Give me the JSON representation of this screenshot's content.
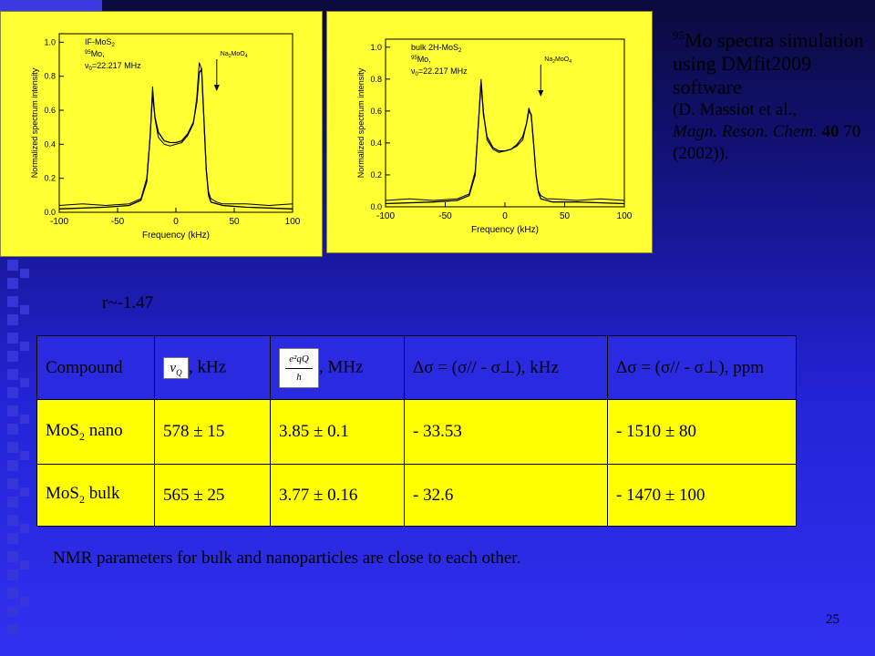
{
  "left_chart": {
    "legend_lines": [
      "IF-MoS",
      "Mo,",
      "=22.217 MHz"
    ],
    "legend_sub": "2",
    "legend_sup": "95",
    "legend_nu": "ν",
    "legend_nu_sub": "0",
    "arrow_label": "Na",
    "arrow_label_rest": "MoO",
    "arrow_sub1": "2",
    "arrow_sub2": "4"
  },
  "right_chart": {
    "legend_lines": [
      "bulk 2H-MoS",
      "Mo,",
      "=22.217 MHz"
    ],
    "legend_sub": "2",
    "legend_sup": "95",
    "legend_nu": "ν",
    "legend_nu_sub": "0",
    "arrow_label": "Na",
    "arrow_label_rest": "MoO",
    "arrow_sub1": "2",
    "arrow_sub2": "4"
  },
  "chart_data": [
    {
      "type": "line",
      "xlabel": "Frequency (kHz)",
      "ylabel": "Normalized spectrum intensity",
      "xlim": [
        -100,
        100
      ],
      "ylim": [
        0.0,
        1.05
      ],
      "xticks": [
        -100,
        -50,
        0,
        50,
        100
      ],
      "yticks": [
        "0.0",
        "0.2",
        "0.4",
        "0.6",
        "0.8",
        "1.0"
      ],
      "series": [
        {
          "kind": "experimental",
          "x": [
            -100,
            -80,
            -60,
            -40,
            -30,
            -25,
            -22,
            -20,
            -18,
            -15,
            -10,
            -5,
            0,
            5,
            10,
            15,
            18,
            20,
            22,
            24,
            26,
            28,
            30,
            35,
            40,
            60,
            80,
            100
          ],
          "y": [
            0.04,
            0.05,
            0.04,
            0.05,
            0.08,
            0.2,
            0.45,
            0.74,
            0.55,
            0.44,
            0.4,
            0.39,
            0.4,
            0.41,
            0.45,
            0.52,
            0.68,
            0.88,
            0.84,
            0.55,
            0.25,
            0.12,
            0.08,
            0.06,
            0.05,
            0.05,
            0.04,
            0.05
          ]
        },
        {
          "kind": "simulation",
          "x": [
            -100,
            -60,
            -40,
            -30,
            -25,
            -22,
            -20,
            -18,
            -15,
            -10,
            -5,
            0,
            5,
            10,
            15,
            18,
            20,
            22,
            24,
            26,
            28,
            30,
            40,
            60,
            100
          ],
          "y": [
            0.02,
            0.03,
            0.04,
            0.07,
            0.18,
            0.45,
            0.7,
            0.56,
            0.47,
            0.42,
            0.41,
            0.41,
            0.42,
            0.46,
            0.53,
            0.65,
            0.82,
            0.84,
            0.55,
            0.25,
            0.1,
            0.06,
            0.04,
            0.03,
            0.02
          ]
        }
      ],
      "annotation_x": 35
    },
    {
      "type": "line",
      "xlabel": "Frequency (kHz)",
      "ylabel": "Normalized spectrum intensity",
      "xlim": [
        -100,
        100
      ],
      "ylim": [
        0.0,
        1.05
      ],
      "xticks": [
        -100,
        -50,
        0,
        50,
        100
      ],
      "yticks": [
        "0.0",
        "0.2",
        "0.4",
        "0.6",
        "0.8",
        "1.0"
      ],
      "series": [
        {
          "kind": "experimental",
          "x": [
            -100,
            -80,
            -60,
            -40,
            -30,
            -25,
            -22,
            -20,
            -18,
            -15,
            -10,
            -5,
            0,
            5,
            10,
            15,
            18,
            20,
            22,
            24,
            26,
            28,
            30,
            35,
            40,
            60,
            80,
            100
          ],
          "y": [
            0.04,
            0.05,
            0.04,
            0.05,
            0.08,
            0.22,
            0.55,
            0.8,
            0.6,
            0.42,
            0.36,
            0.34,
            0.35,
            0.36,
            0.38,
            0.42,
            0.52,
            0.62,
            0.57,
            0.4,
            0.2,
            0.1,
            0.07,
            0.05,
            0.05,
            0.04,
            0.05,
            0.04
          ]
        },
        {
          "kind": "simulation",
          "x": [
            -100,
            -60,
            -40,
            -30,
            -25,
            -22,
            -20,
            -18,
            -15,
            -10,
            -5,
            0,
            5,
            10,
            15,
            18,
            20,
            22,
            24,
            26,
            28,
            30,
            40,
            60,
            100
          ],
          "y": [
            0.02,
            0.03,
            0.04,
            0.07,
            0.2,
            0.55,
            0.78,
            0.58,
            0.44,
            0.37,
            0.35,
            0.35,
            0.36,
            0.39,
            0.44,
            0.52,
            0.6,
            0.58,
            0.4,
            0.2,
            0.09,
            0.05,
            0.03,
            0.03,
            0.02
          ]
        }
      ],
      "annotation_x": 30
    }
  ],
  "note": {
    "sup": "95",
    "line1": "Mo spectra simulation using DMfit2009 software",
    "ref_a": "(D. Massiot et al.,",
    "ref_b": "Magn. Reson. Chem.",
    "ref_c": "40",
    "ref_d": "70 (2002))."
  },
  "r_label": "r~-1.47",
  "table": {
    "header": {
      "compound": "Compound",
      "nu_symbol": "ν",
      "nu_sub": "Q",
      "nu_unit": ", kHz",
      "cq_num": "e²qQ",
      "cq_den": "h",
      "cq_unit": ", MHz",
      "ds_khz": "Δσ = (σ// - σ⊥), kHz",
      "ds_ppm": "Δσ = (σ// - σ⊥), ppm"
    },
    "rows": [
      {
        "compound": "MoS",
        "compound_sub": "2",
        "compound_rest": " nano",
        "nu": "578 ± 15",
        "cq": "3.85 ± 0.1",
        "ds_khz": "- 33.53",
        "ds_ppm": "- 1510 ± 80"
      },
      {
        "compound": "MoS",
        "compound_sub": "2",
        "compound_rest": " bulk",
        "nu": "565 ± 25",
        "cq": "3.77 ± 0.16",
        "ds_khz": "- 32.6",
        "ds_ppm": "- 1470 ± 100"
      }
    ]
  },
  "conclusion": "NMR parameters for bulk and nanoparticles are close to each other.",
  "page_number": "25",
  "colors": {
    "panel": "#ffff33",
    "table_header": "#2a2ae0",
    "table_row": "#ffff00",
    "background": "#2323d6"
  }
}
